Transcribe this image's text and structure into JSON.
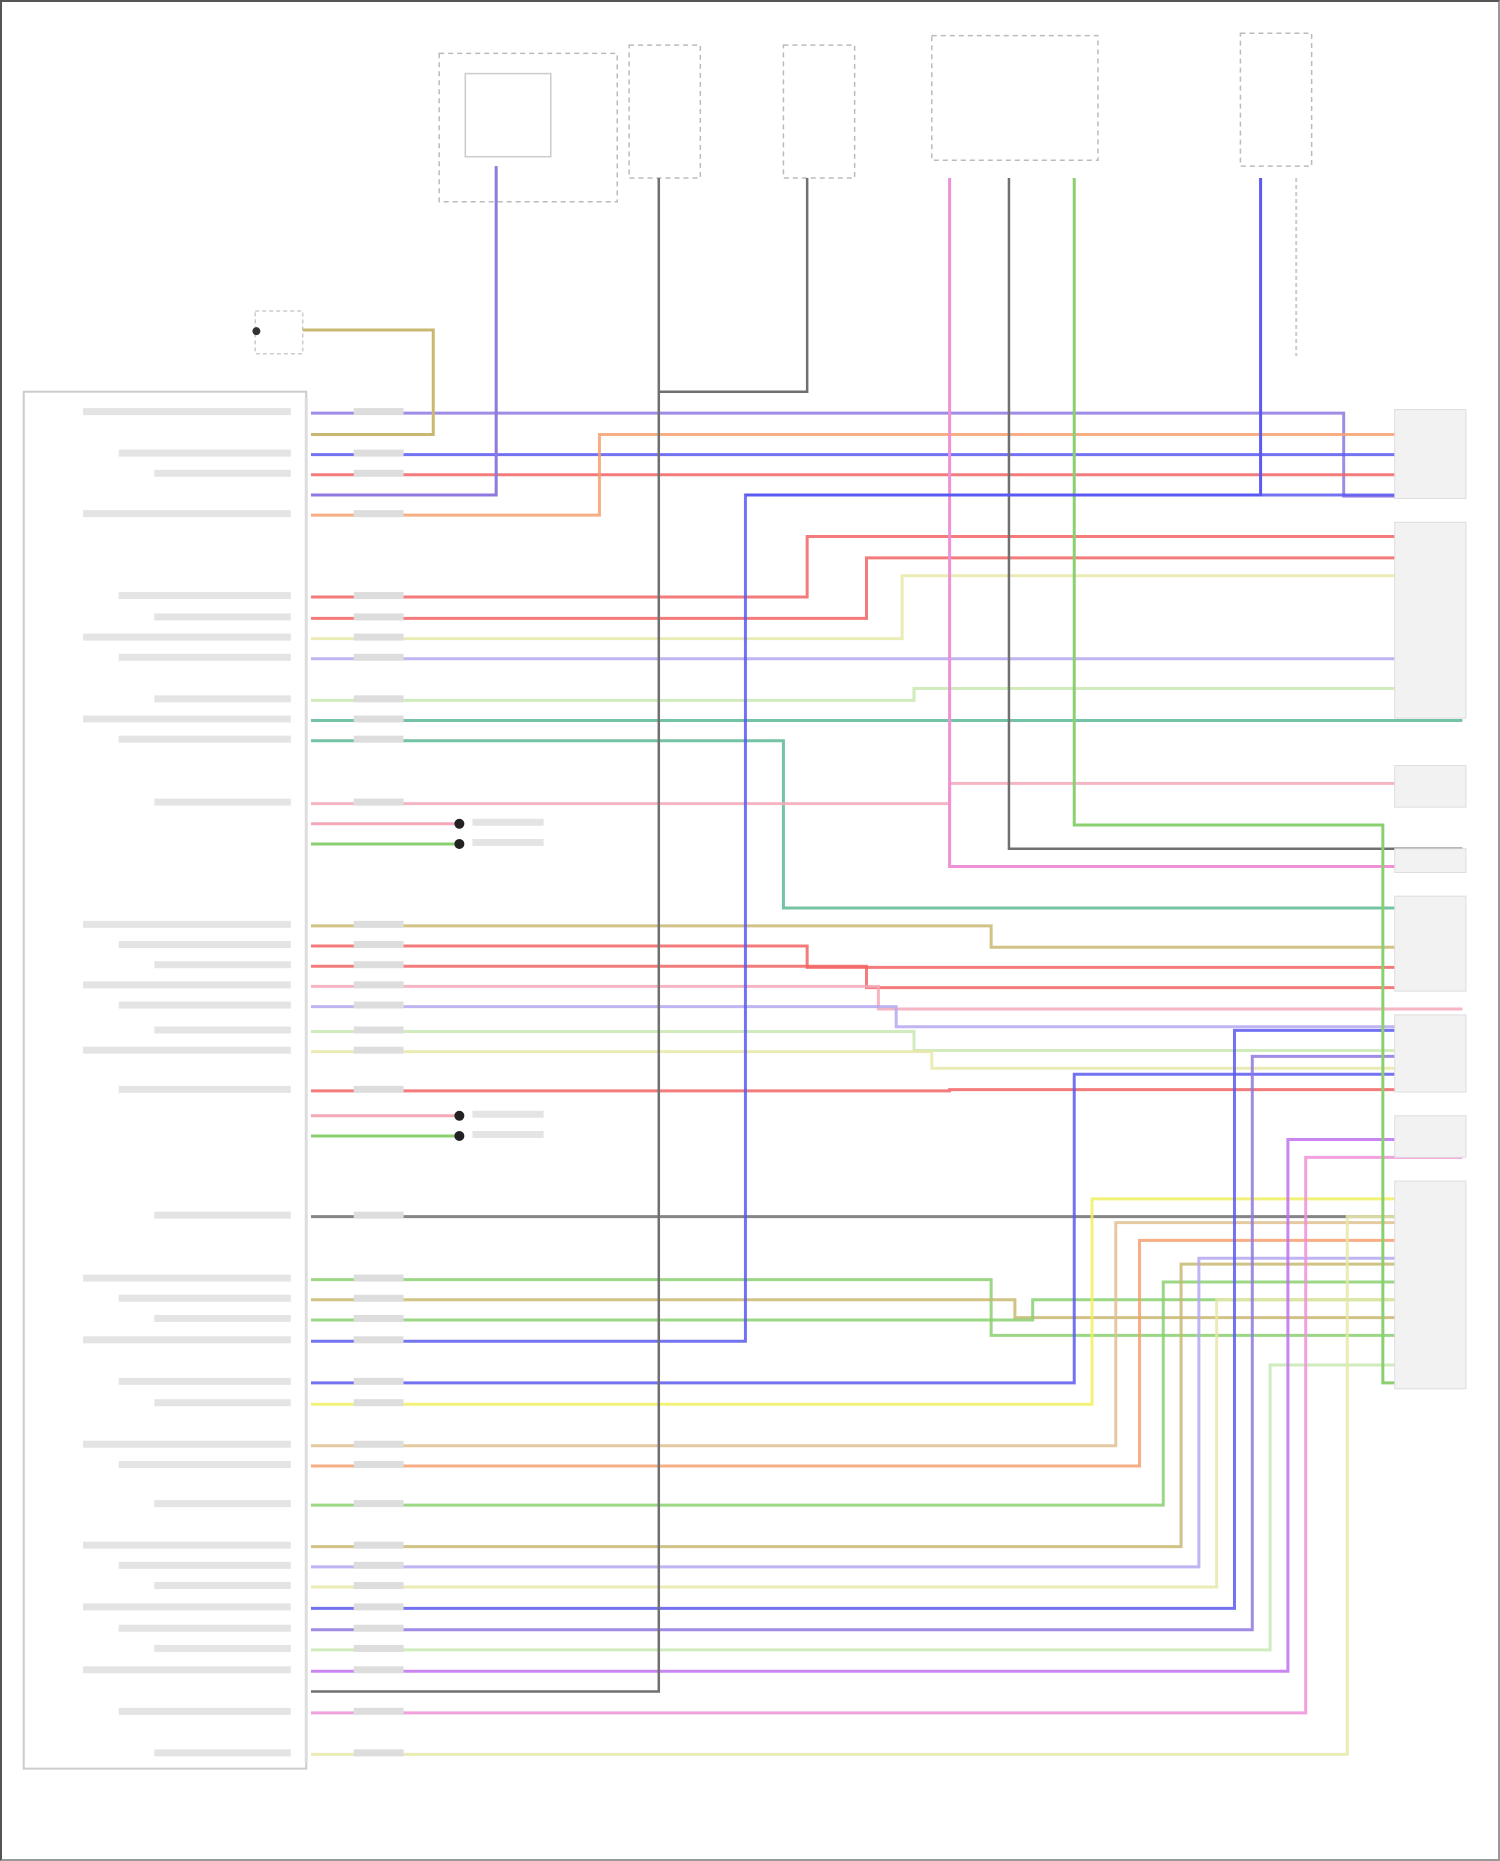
{
  "diagram": {
    "colors": {
      "purple": "#8f78e0",
      "blue": "#5a5af0",
      "red": "#f26464",
      "orange": "#f6a070",
      "olive": "#c8b870",
      "pink": "#f090d8",
      "rose": "#f4a8b8",
      "green": "#8ad070",
      "teal": "#5cb894",
      "lightgreen": "#c8e8b0",
      "yellow": "#f0f060",
      "paleyellow": "#e8e8a8",
      "lavender": "#b4a8f0",
      "gray": "#707070",
      "violet": "#c070f0",
      "tan": "#e0c090"
    }
  }
}
